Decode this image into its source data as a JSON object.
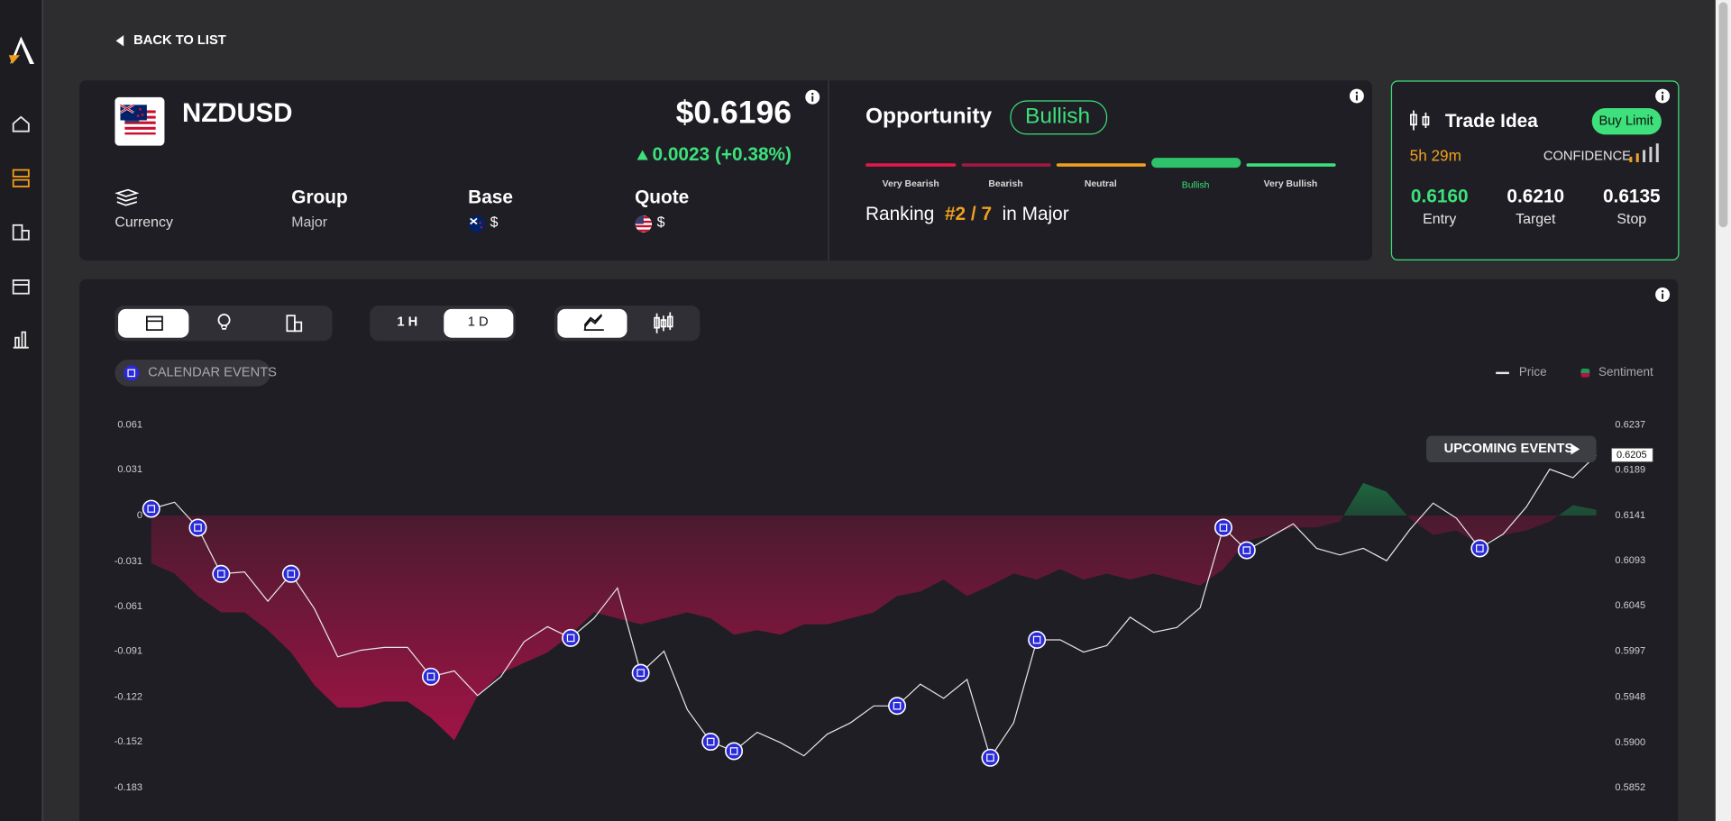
{
  "nav": {
    "back": "BACK TO LIST"
  },
  "instrument": {
    "symbol": "NZDUSD",
    "price": "$0.6196",
    "change": "0.0023 (+0.38%)",
    "type": "Currency",
    "group_label": "Group",
    "group": "Major",
    "base_label": "Base",
    "base": "$",
    "quote_label": "Quote",
    "quote": "$"
  },
  "opportunity": {
    "title": "Opportunity",
    "status": "Bullish",
    "scale": [
      "Very Bearish",
      "Bearish",
      "Neutral",
      "Bullish",
      "Very Bullish"
    ],
    "ranking_label": "Ranking",
    "rank": "#2 / 7",
    "ranking_suffix": "in Major"
  },
  "trade_idea": {
    "title": "Trade Idea",
    "order": "Buy Limit",
    "time": "5h 29m",
    "confidence_label": "CONFIDENCE",
    "levels": [
      {
        "value": "0.6160",
        "label": "Entry"
      },
      {
        "value": "0.6210",
        "label": "Target"
      },
      {
        "value": "0.6135",
        "label": "Stop"
      }
    ]
  },
  "toolbar": {
    "timeframes": [
      "1 H",
      "1 D"
    ],
    "filter": "CALENDAR EVENTS"
  },
  "chart": {
    "type": "line",
    "upcoming": "UPCOMING EVENTS",
    "last_price_label": "0.6205",
    "ylim": [
      -0.183,
      0.061
    ],
    "yticks": [
      -0.183,
      -0.152,
      -0.122,
      -0.091,
      -0.061,
      -0.031,
      0,
      0.031,
      0.061
    ],
    "y2lim": [
      0.5852,
      0.6237
    ],
    "y2ticks": [
      0.5852,
      {
        "value": 0.59,
        "label": "0.5900"
      },
      0.5948,
      0.5997,
      0.6045,
      0.6093,
      0.6141,
      0.6189,
      0.6237
    ],
    "series": [
      {
        "name": "Sentiment",
        "type": "area",
        "color_positive": "#1f9a52",
        "color_negative": "#b3124a",
        "values": [
          -0.032,
          -0.039,
          -0.054,
          -0.065,
          -0.065,
          -0.077,
          -0.092,
          -0.114,
          -0.129,
          -0.129,
          -0.125,
          -0.125,
          -0.136,
          -0.151,
          -0.121,
          -0.106,
          -0.099,
          -0.092,
          -0.08,
          -0.065,
          -0.069,
          -0.073,
          -0.069,
          -0.065,
          -0.069,
          -0.08,
          -0.077,
          -0.08,
          -0.073,
          -0.073,
          -0.069,
          -0.065,
          -0.054,
          -0.051,
          -0.043,
          -0.054,
          -0.047,
          -0.039,
          -0.043,
          -0.036,
          -0.043,
          -0.039,
          -0.043,
          -0.039,
          -0.043,
          -0.047,
          -0.036,
          -0.017,
          -0.013,
          -0.008,
          -0.008,
          -0.004,
          0.022,
          0.016,
          -0.002,
          -0.013,
          -0.01,
          -0.019,
          -0.013,
          -0.01,
          -0.004,
          0.007,
          0.004
        ]
      },
      {
        "name": "Price",
        "axis": "y2",
        "color": "#e6e6e6",
        "values": [
          0.6148,
          0.6155,
          0.6128,
          0.6079,
          0.6081,
          0.605,
          0.6079,
          0.6042,
          0.5991,
          0.5998,
          0.6001,
          0.6001,
          0.597,
          0.5976,
          0.595,
          0.597,
          0.6007,
          0.6023,
          0.6011,
          0.6032,
          0.6064,
          0.5974,
          0.5997,
          0.5935,
          0.5901,
          0.5891,
          0.5911,
          0.59,
          0.5886,
          0.5909,
          0.5921,
          0.5939,
          0.5939,
          0.5962,
          0.5947,
          0.5967,
          0.5884,
          0.5921,
          0.6009,
          0.6009,
          0.5996,
          0.6003,
          0.6033,
          0.6017,
          0.6022,
          0.6043,
          0.6128,
          0.6104,
          0.6118,
          0.6132,
          0.6106,
          0.6099,
          0.6106,
          0.6093,
          0.6126,
          0.6154,
          0.6138,
          0.6106,
          0.6121,
          0.615,
          0.619,
          0.6181,
          0.6205
        ]
      }
    ],
    "event_indices": [
      0,
      2,
      3,
      6,
      12,
      18,
      21,
      24,
      25,
      32,
      36,
      38,
      46,
      47,
      57
    ]
  }
}
